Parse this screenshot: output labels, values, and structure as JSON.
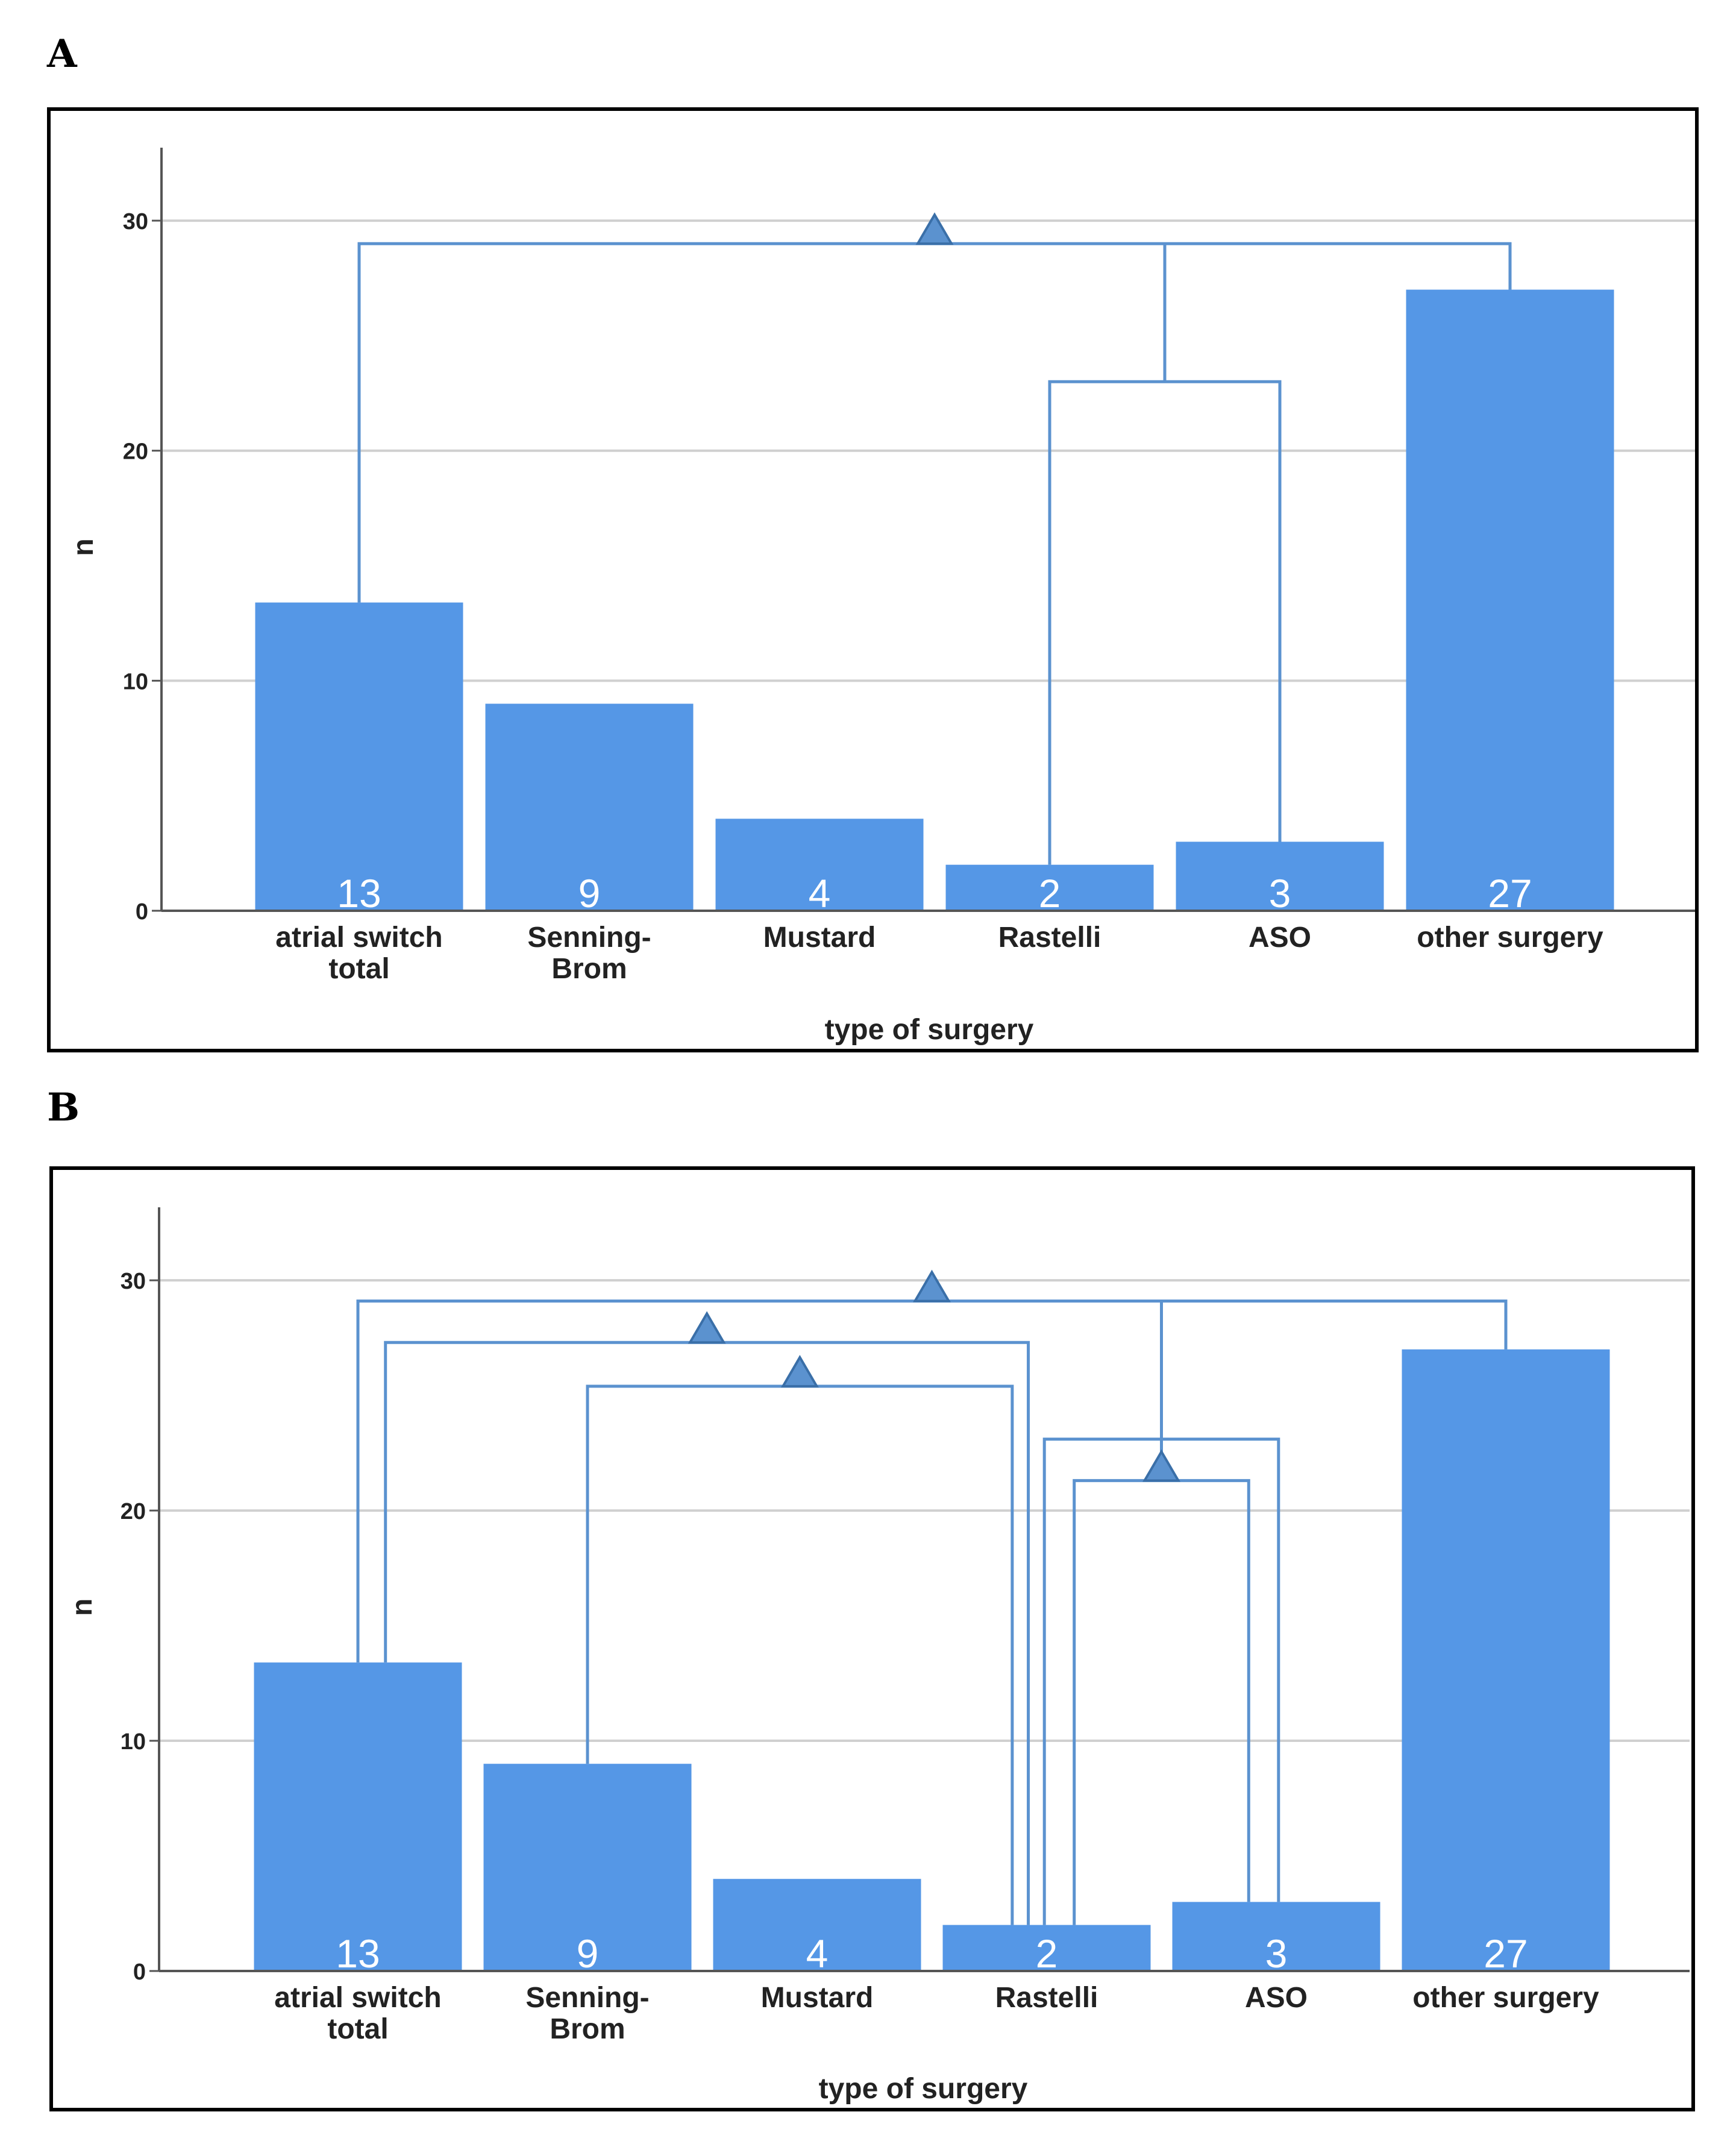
{
  "chart_data": [
    {
      "panel": "A",
      "type": "bar",
      "categories": [
        [
          "atrial switch",
          "total"
        ],
        [
          "Senning-",
          "Brom"
        ],
        [
          "Mustard"
        ],
        [
          "Rastelli"
        ],
        [
          "ASO"
        ],
        [
          "other surgery"
        ]
      ],
      "values": [
        13.4,
        9,
        4,
        2,
        3,
        27
      ],
      "data_labels": [
        "13",
        "9",
        "4",
        "2",
        "3",
        "27"
      ],
      "xlabel": "type of surgery",
      "ylabel": "n",
      "ylim": [
        0,
        31.6
      ],
      "yticks": [
        0,
        10,
        20,
        30
      ],
      "grid": true,
      "bar_color": "#5597e6",
      "bracket_color": "#5b92cf",
      "brackets": [
        {
          "from": 3,
          "to": 4,
          "height": 23
        },
        {
          "from": 0,
          "to": 5,
          "height": 29,
          "inner_from": 3.5,
          "marker": true
        }
      ]
    },
    {
      "panel": "B",
      "type": "bar",
      "categories": [
        [
          "atrial switch",
          "total"
        ],
        [
          "Senning-",
          "Brom"
        ],
        [
          "Mustard"
        ],
        [
          "Rastelli"
        ],
        [
          "ASO"
        ],
        [
          "other surgery"
        ]
      ],
      "values": [
        13.4,
        9,
        4,
        2,
        3,
        27
      ],
      "data_labels": [
        "13",
        "9",
        "4",
        "2",
        "3",
        "27"
      ],
      "xlabel": "type of surgery",
      "ylabel": "n",
      "ylim": [
        0,
        31.6
      ],
      "yticks": [
        0,
        10,
        20,
        30
      ],
      "grid": true,
      "bar_color": "#5597e6",
      "bracket_color": "#5b92cf",
      "brackets": [
        {
          "from": 1,
          "to": 2.85,
          "height": 25.4,
          "marker": true
        },
        {
          "from": 0.12,
          "to": 2.92,
          "height": 27.3,
          "marker": true
        },
        {
          "from": 3.12,
          "to": 3.88,
          "height": 21.3,
          "marker": true
        },
        {
          "from": 2.99,
          "to": 4.01,
          "height": 23.1
        },
        {
          "from": 0,
          "to": 5,
          "height": 29.1,
          "inner_from": 3.5,
          "marker": true
        }
      ]
    }
  ]
}
